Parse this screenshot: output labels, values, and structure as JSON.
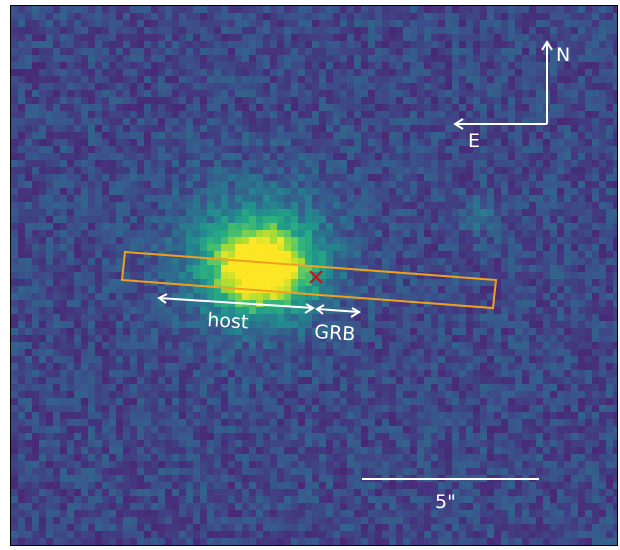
{
  "image": {
    "colormap": "viridis",
    "background_level": 0.22,
    "noise_level": 0.1,
    "source": {
      "description_color": "#f8e71c"
    }
  },
  "labels": {
    "north": "N",
    "east": "E",
    "host": "host",
    "grb": "GRB",
    "scale": "5\""
  },
  "colors": {
    "slit": "#f0a020",
    "grb_marker": "#cc1111",
    "annotation": "#ffffff"
  }
}
